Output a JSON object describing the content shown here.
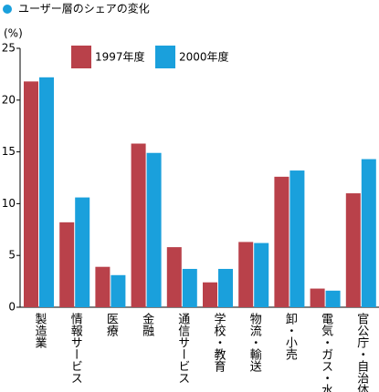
{
  "chart_data": {
    "type": "bar",
    "title": "ユーザー層のシェアの変化",
    "y_label": "(%)",
    "categories": [
      "製造業",
      "情報サービス",
      "医療",
      "金融",
      "通信サービス",
      "学校・教育",
      "物流・輸送",
      "卸・小売",
      "電気・ガス・水道",
      "官公庁・自治体"
    ],
    "series": [
      {
        "name": "1997年度",
        "color": "#b9414a",
        "values": [
          21.8,
          8.2,
          3.9,
          15.8,
          5.8,
          2.4,
          6.3,
          12.6,
          1.8,
          11.0
        ]
      },
      {
        "name": "2000年度",
        "color": "#1aa0dc",
        "values": [
          22.2,
          10.6,
          3.1,
          14.9,
          3.7,
          3.7,
          6.2,
          13.2,
          1.6,
          14.3
        ]
      }
    ],
    "ylim": [
      0,
      25
    ],
    "yticks": [
      0,
      5,
      10,
      15,
      20,
      25
    ]
  }
}
